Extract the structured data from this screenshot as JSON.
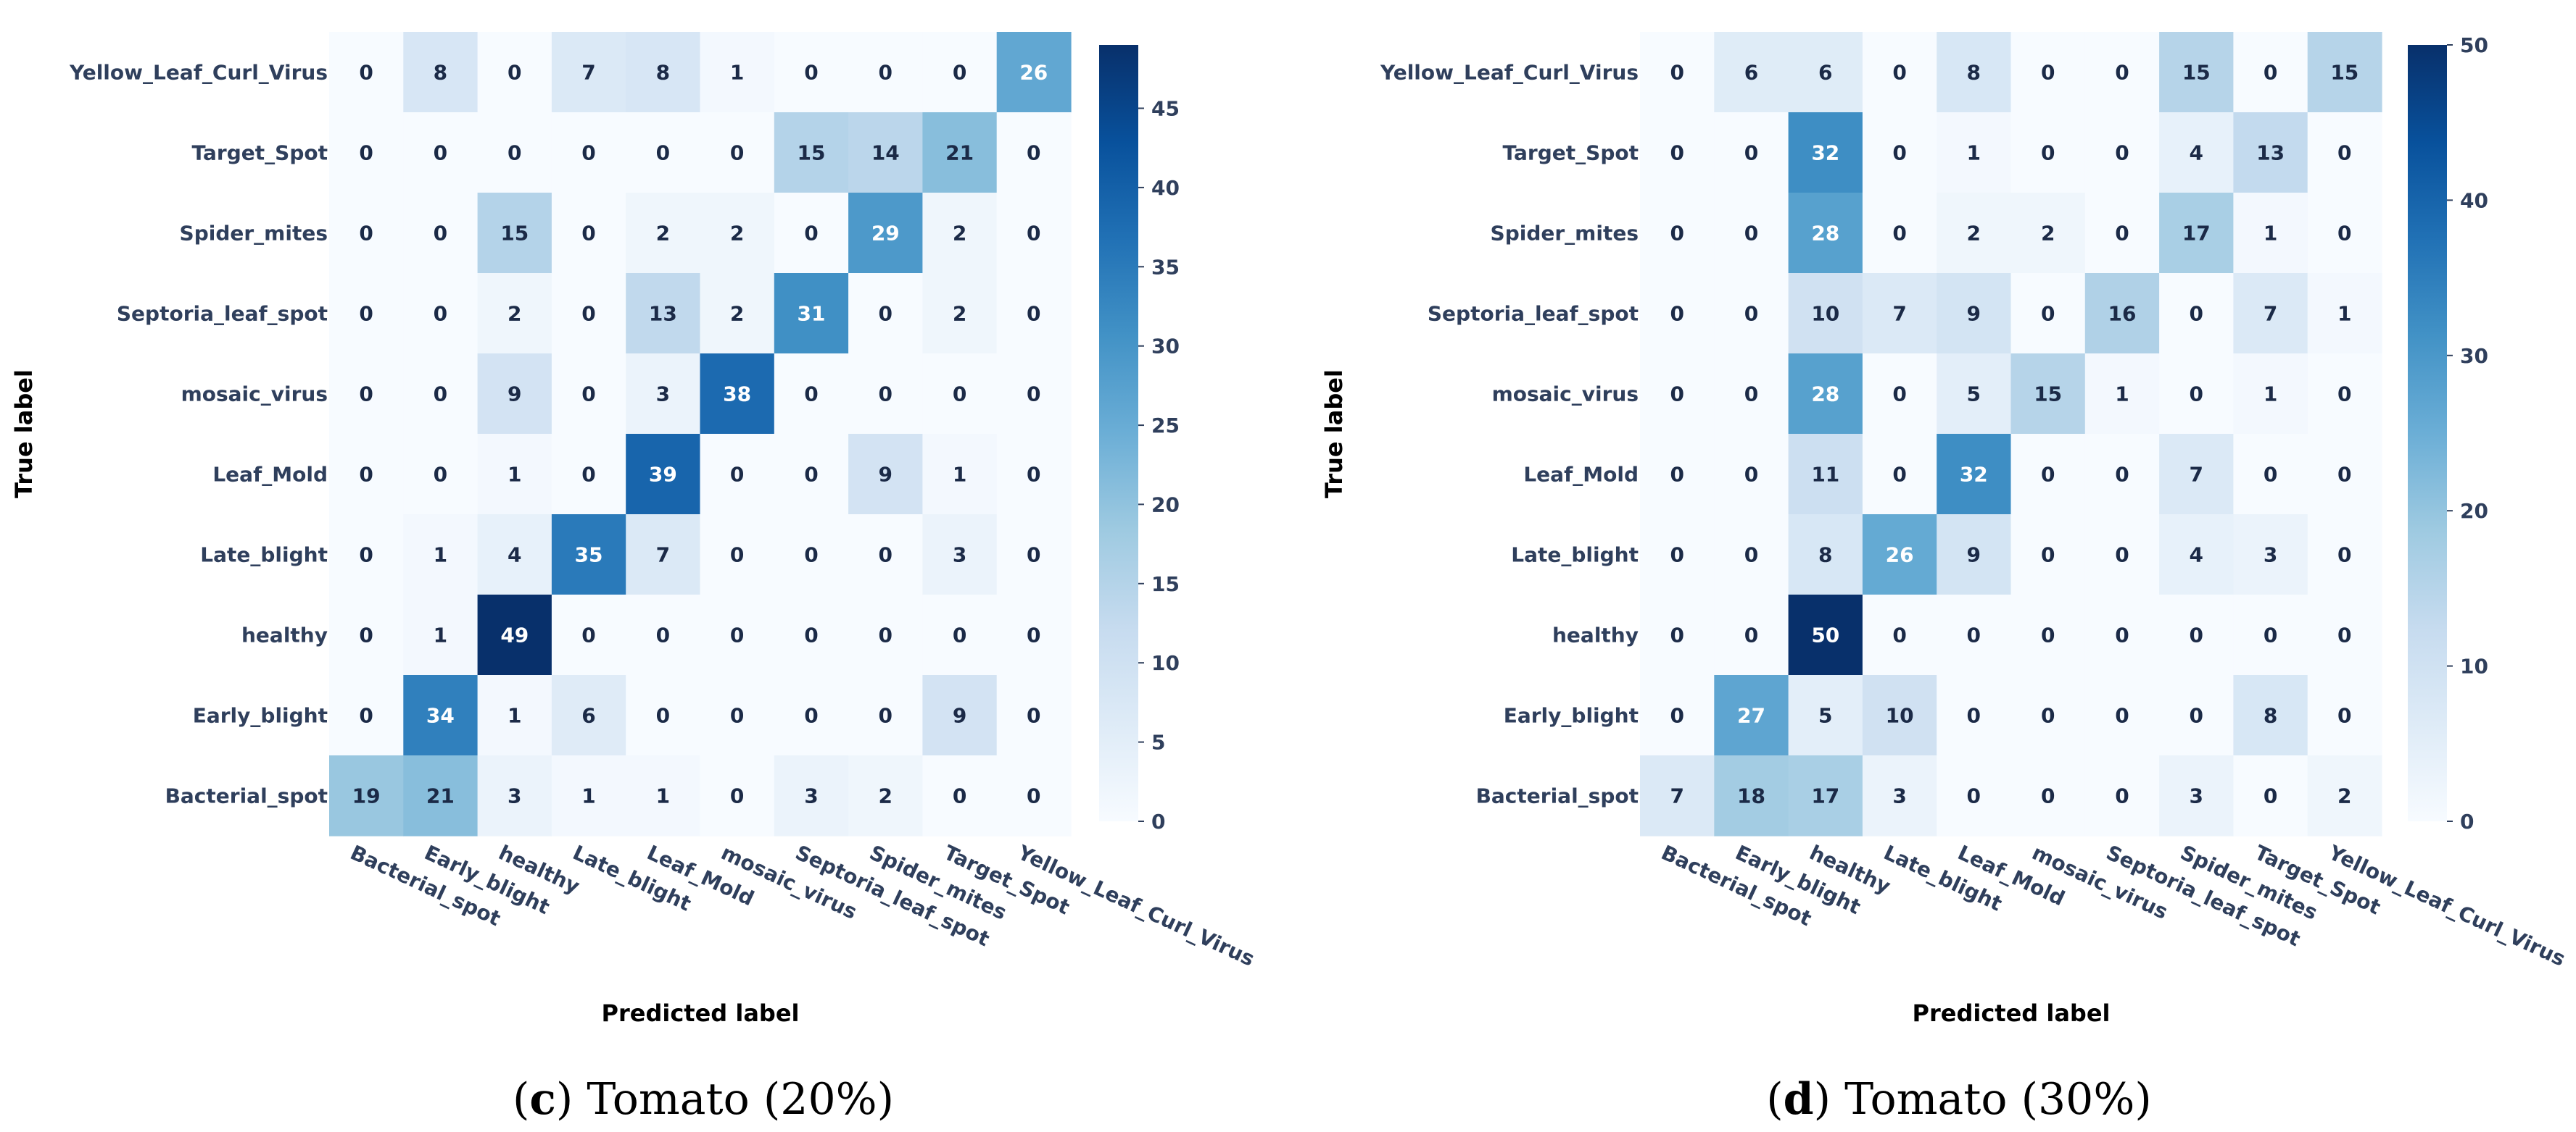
{
  "chart_data": [
    {
      "type": "heatmap",
      "title": "",
      "caption_letter": "c",
      "caption_text": "Tomato (20%)",
      "xlabel": "Predicted label",
      "ylabel": "True label",
      "rows": [
        "Yellow_Leaf_Curl_Virus",
        "Target_Spot",
        "Spider_mites",
        "Septoria_leaf_spot",
        "mosaic_virus",
        "Leaf_Mold",
        "Late_blight",
        "healthy",
        "Early_blight",
        "Bacterial_spot"
      ],
      "columns": [
        "Bacterial_spot",
        "Early_blight",
        "healthy",
        "Late_blight",
        "Leaf_Mold",
        "mosaic_virus",
        "Septoria_leaf_spot",
        "Spider_mites",
        "Target_Spot",
        "Yellow_Leaf_Curl_Virus"
      ],
      "values": [
        [
          0,
          8,
          0,
          7,
          8,
          1,
          0,
          0,
          0,
          26
        ],
        [
          0,
          0,
          0,
          0,
          0,
          0,
          15,
          14,
          21,
          0
        ],
        [
          0,
          0,
          15,
          0,
          2,
          2,
          0,
          29,
          2,
          0
        ],
        [
          0,
          0,
          2,
          0,
          13,
          2,
          31,
          0,
          2,
          0
        ],
        [
          0,
          0,
          9,
          0,
          3,
          38,
          0,
          0,
          0,
          0
        ],
        [
          0,
          0,
          1,
          0,
          39,
          0,
          0,
          9,
          1,
          0
        ],
        [
          0,
          1,
          4,
          35,
          7,
          0,
          0,
          0,
          3,
          0
        ],
        [
          0,
          1,
          49,
          0,
          0,
          0,
          0,
          0,
          0,
          0
        ],
        [
          0,
          34,
          1,
          6,
          0,
          0,
          0,
          0,
          9,
          0
        ],
        [
          19,
          21,
          3,
          1,
          1,
          0,
          3,
          2,
          0,
          0
        ]
      ],
      "colorbar": {
        "min": 0,
        "max": 49,
        "ticks": [
          0,
          5,
          10,
          15,
          20,
          25,
          30,
          35,
          40,
          45
        ],
        "colormap": "Blues"
      }
    },
    {
      "type": "heatmap",
      "title": "",
      "caption_letter": "d",
      "caption_text": "Tomato (30%)",
      "xlabel": "Predicted label",
      "ylabel": "True label",
      "rows": [
        "Yellow_Leaf_Curl_Virus",
        "Target_Spot",
        "Spider_mites",
        "Septoria_leaf_spot",
        "mosaic_virus",
        "Leaf_Mold",
        "Late_blight",
        "healthy",
        "Early_blight",
        "Bacterial_spot"
      ],
      "columns": [
        "Bacterial_spot",
        "Early_blight",
        "healthy",
        "Late_blight",
        "Leaf_Mold",
        "mosaic_virus",
        "Septoria_leaf_spot",
        "Spider_mites",
        "Target_Spot",
        "Yellow_Leaf_Curl_Virus"
      ],
      "values": [
        [
          0,
          6,
          6,
          0,
          8,
          0,
          0,
          15,
          0,
          15
        ],
        [
          0,
          0,
          32,
          0,
          1,
          0,
          0,
          4,
          13,
          0
        ],
        [
          0,
          0,
          28,
          0,
          2,
          2,
          0,
          17,
          1,
          0
        ],
        [
          0,
          0,
          10,
          7,
          9,
          0,
          16,
          0,
          7,
          1
        ],
        [
          0,
          0,
          28,
          0,
          5,
          15,
          1,
          0,
          1,
          0
        ],
        [
          0,
          0,
          11,
          0,
          32,
          0,
          0,
          7,
          0,
          0
        ],
        [
          0,
          0,
          8,
          26,
          9,
          0,
          0,
          4,
          3,
          0
        ],
        [
          0,
          0,
          50,
          0,
          0,
          0,
          0,
          0,
          0,
          0
        ],
        [
          0,
          27,
          5,
          10,
          0,
          0,
          0,
          0,
          8,
          0
        ],
        [
          7,
          18,
          17,
          3,
          0,
          0,
          0,
          3,
          0,
          2
        ]
      ],
      "colorbar": {
        "min": 0,
        "max": 50,
        "ticks": [
          0,
          10,
          20,
          30,
          40,
          50
        ],
        "colormap": "Blues"
      }
    }
  ]
}
